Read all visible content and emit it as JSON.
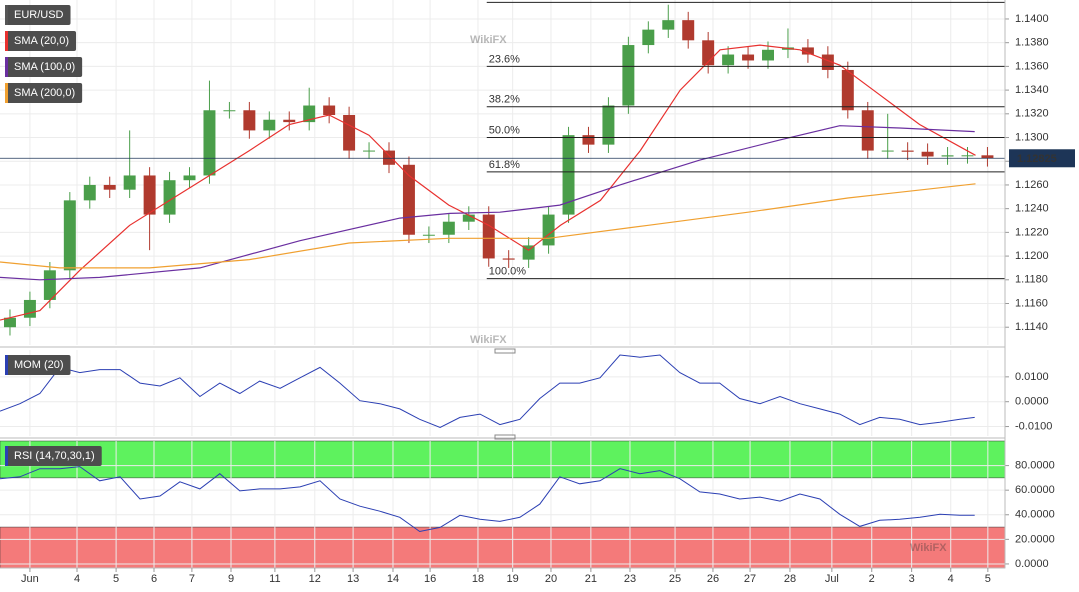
{
  "watermark": "WikiFX",
  "chart_data": [
    {
      "type": "candlestick",
      "name": "EUR/USD",
      "color": "#555555",
      "up_color": "#4a9e4a",
      "down_color": "#b03a2e",
      "xlim": [
        -0.75,
        24.44
      ],
      "ylim": [
        1.1125,
        1.1416
      ],
      "yticks": [
        {
          "value": 1.114,
          "label": "1.1140"
        },
        {
          "value": 1.116,
          "label": "1.1160"
        },
        {
          "value": 1.118,
          "label": "1.1180"
        },
        {
          "value": 1.12,
          "label": "1.1200"
        },
        {
          "value": 1.122,
          "label": "1.1220"
        },
        {
          "value": 1.124,
          "label": "1.1240"
        },
        {
          "value": 1.126,
          "label": "1.1260"
        },
        {
          "value": 1.128,
          "label": "1.1280"
        },
        {
          "value": 1.13,
          "label": "1.1300"
        },
        {
          "value": 1.132,
          "label": "1.1320"
        },
        {
          "value": 1.134,
          "label": "1.1340"
        },
        {
          "value": 1.136,
          "label": "1.1360"
        },
        {
          "value": 1.138,
          "label": "1.1380"
        },
        {
          "value": 1.14,
          "label": "1.1400"
        }
      ],
      "x": [
        -0.5,
        0,
        0.5,
        1,
        1.5,
        2,
        2.5,
        3,
        3.5,
        4,
        4.5,
        5,
        5.5,
        6,
        6.5,
        7,
        7.5,
        8,
        8.5,
        9,
        9.5,
        10,
        10.5,
        11,
        11.5,
        12,
        12.5,
        13,
        13.5,
        14,
        14.5,
        15,
        15.5,
        16,
        16.5,
        17,
        17.5,
        18,
        18.5,
        19,
        19.5,
        20,
        20.5,
        21,
        21.5,
        22,
        22.5,
        23,
        23.5,
        24
      ],
      "open": [
        1.114,
        1.1148,
        1.1163,
        1.1188,
        1.1247,
        1.126,
        1.1256,
        1.1268,
        1.1235,
        1.1264,
        1.1268,
        1.1323,
        1.1323,
        1.1306,
        1.1315,
        1.1313,
        1.1327,
        1.1319,
        1.1289,
        1.1289,
        1.1277,
        1.1218,
        1.1218,
        1.1229,
        1.1235,
        1.1198,
        1.1197,
        1.1209,
        1.1235,
        1.1302,
        1.1294,
        1.1327,
        1.1378,
        1.1391,
        1.1399,
        1.1382,
        1.1361,
        1.137,
        1.1365,
        1.1374,
        1.1376,
        1.137,
        1.1357,
        1.1323,
        1.1289,
        1.1289,
        1.1288,
        1.1284,
        1.1285,
        1.1285
      ],
      "high": [
        1.1155,
        1.117,
        1.1195,
        1.1254,
        1.1267,
        1.1267,
        1.1306,
        1.1275,
        1.1271,
        1.1275,
        1.1348,
        1.133,
        1.133,
        1.1322,
        1.1322,
        1.1342,
        1.1334,
        1.1326,
        1.1296,
        1.1296,
        1.1284,
        1.1225,
        1.1236,
        1.1242,
        1.1242,
        1.1205,
        1.1216,
        1.1242,
        1.1309,
        1.1309,
        1.1334,
        1.1385,
        1.1398,
        1.1412,
        1.1406,
        1.1389,
        1.1377,
        1.1377,
        1.1381,
        1.1392,
        1.1383,
        1.1377,
        1.1364,
        1.133,
        1.132,
        1.1296,
        1.1295,
        1.1292,
        1.1292,
        1.1292
      ],
      "low": [
        1.1133,
        1.1141,
        1.1156,
        1.1181,
        1.124,
        1.1249,
        1.1249,
        1.1205,
        1.1228,
        1.1257,
        1.1261,
        1.1316,
        1.1299,
        1.1299,
        1.1306,
        1.1306,
        1.1312,
        1.1282,
        1.1282,
        1.127,
        1.1211,
        1.1211,
        1.1211,
        1.1222,
        1.1191,
        1.119,
        1.119,
        1.1202,
        1.1228,
        1.1287,
        1.1287,
        1.132,
        1.1371,
        1.1384,
        1.1375,
        1.1354,
        1.1354,
        1.1358,
        1.1358,
        1.1367,
        1.1363,
        1.135,
        1.1316,
        1.1282,
        1.1282,
        1.1281,
        1.1277,
        1.1277,
        1.1278,
        1.12755
      ],
      "close": [
        1.1148,
        1.1163,
        1.1188,
        1.1247,
        1.126,
        1.1256,
        1.1268,
        1.1235,
        1.1264,
        1.1268,
        1.1323,
        1.1323,
        1.1306,
        1.1315,
        1.1313,
        1.1327,
        1.1319,
        1.1289,
        1.1289,
        1.1277,
        1.1218,
        1.1218,
        1.1229,
        1.1235,
        1.1198,
        1.1197,
        1.1209,
        1.1235,
        1.1302,
        1.1294,
        1.1327,
        1.1378,
        1.1391,
        1.1399,
        1.1382,
        1.1361,
        1.137,
        1.1365,
        1.1374,
        1.1376,
        1.137,
        1.1357,
        1.1323,
        1.1289,
        1.1289,
        1.1288,
        1.1284,
        1.1285,
        1.1285,
        1.12825
      ],
      "lines": [
        {
          "name": "SMA (20,0)",
          "color": "#e8312f",
          "x": [
            -0.75,
            0.25,
            1.25,
            2.5,
            3.5,
            4.5,
            5.5,
            6.5,
            7.5,
            8.5,
            9.5,
            10.5,
            11.5,
            12.5,
            13.3,
            14.3,
            15.3,
            16.3,
            17.3,
            18.3,
            19.3,
            20.3,
            21.3,
            22.3,
            23.7
          ],
          "values": [
            1.1146,
            1.1154,
            1.1188,
            1.1226,
            1.1247,
            1.1268,
            1.1289,
            1.1311,
            1.1319,
            1.1302,
            1.1268,
            1.1243,
            1.1226,
            1.1205,
            1.1226,
            1.1247,
            1.1289,
            1.134,
            1.1374,
            1.1378,
            1.1374,
            1.1361,
            1.1336,
            1.1311,
            1.1285
          ]
        },
        {
          "name": "SMA (100,0)",
          "color": "#6a2fa0",
          "x": [
            -0.75,
            0.25,
            1.75,
            4.26,
            6.77,
            9.27,
            10.53,
            11.78,
            13.28,
            14.79,
            16.79,
            18.8,
            20.3,
            21.8,
            23.68
          ],
          "values": [
            1.1182,
            1.118,
            1.1182,
            1.119,
            1.1213,
            1.1232,
            1.1236,
            1.1237,
            1.1243,
            1.126,
            1.1281,
            1.1298,
            1.131,
            1.1308,
            1.1305
          ]
        },
        {
          "name": "SMA (200,0)",
          "color": "#f0a030",
          "x": [
            -0.75,
            0.75,
            3.0,
            5.5,
            8.0,
            10.5,
            13.0,
            15.5,
            18.0,
            20.5,
            23.7
          ],
          "values": [
            1.1195,
            1.119,
            1.119,
            1.1197,
            1.1211,
            1.1215,
            1.1215,
            1.1226,
            1.1237,
            1.1249,
            1.1261
          ]
        }
      ],
      "fib_start": 11.45,
      "fib_levels": [
        {
          "value": 1.1414
        },
        {
          "label": "23.6%",
          "value": 1.136
        },
        {
          "label": "38.2%",
          "value": 1.1326
        },
        {
          "label": "50.0%",
          "value": 1.13
        },
        {
          "label": "61.8%",
          "value": 1.1271
        },
        {
          "label": "100.0%",
          "value": 1.1181
        }
      ],
      "last_price": 1.12825,
      "last_price_color": "#1d3557"
    },
    {
      "type": "line",
      "xlim": [
        -0.75,
        24.44
      ],
      "ylim": [
        -0.0138,
        0.0208
      ],
      "yticks": [
        {
          "value": 0.01,
          "label": "0.0100"
        },
        {
          "value": 0,
          "label": "0.0000"
        },
        {
          "value": -0.01,
          "label": "-0.0100"
        }
      ],
      "series": [
        {
          "name": "MOM (20)",
          "color": "#2b3fb3",
          "x": [
            -0.75,
            -0.25,
            0.25,
            0.75,
            1.25,
            1.75,
            2.26,
            2.76,
            3.26,
            3.76,
            4.26,
            4.76,
            5.26,
            5.76,
            6.27,
            6.77,
            7.27,
            7.77,
            8.27,
            8.77,
            9.27,
            9.77,
            10.28,
            10.78,
            11.28,
            11.78,
            12.28,
            12.78,
            13.28,
            13.78,
            14.29,
            14.79,
            15.29,
            15.79,
            16.29,
            16.79,
            17.29,
            17.79,
            18.3,
            18.8,
            19.3,
            19.8,
            20.3,
            20.8,
            21.3,
            21.8,
            22.31,
            22.81,
            23.31,
            23.68
          ],
          "values": [
            -0.0038,
            -0.0008,
            0.0033,
            0.0138,
            0.0117,
            0.0129,
            0.0129,
            0.0075,
            0.0063,
            0.0096,
            0.0021,
            0.0075,
            0.0033,
            0.0083,
            0.0054,
            0.0096,
            0.0138,
            0.0075,
            0.0004,
            -0.0008,
            -0.0029,
            -0.0071,
            -0.0104,
            -0.0063,
            -0.005,
            -0.0092,
            -0.0071,
            0.0013,
            0.0075,
            0.0075,
            0.0096,
            0.0188,
            0.0179,
            0.0188,
            0.0117,
            0.0075,
            0.0075,
            0.0013,
            -0.0008,
            0.0021,
            -0.0008,
            -0.0029,
            -0.005,
            -0.0092,
            -0.0063,
            -0.0071,
            -0.0092,
            -0.0083,
            -0.0071,
            -0.0063
          ]
        }
      ]
    },
    {
      "type": "line",
      "xlim": [
        -0.75,
        24.44
      ],
      "ylim": [
        -3.3,
        100
      ],
      "yticks": [
        {
          "value": 80,
          "label": "80.0000"
        },
        {
          "value": 60,
          "label": "60.0000"
        },
        {
          "value": 40,
          "label": "40.0000"
        },
        {
          "value": 20,
          "label": "20.0000"
        },
        {
          "value": 0,
          "label": "0.0000"
        }
      ],
      "overbought": 70,
      "overbought_color": "#5ef25e",
      "oversold": 30,
      "oversold_color": "#f47a7a",
      "series": [
        {
          "name": "RSI (14,70,30,1)",
          "color": "#2b3fb3",
          "x": [
            -0.75,
            -0.25,
            0.25,
            0.75,
            1.25,
            1.75,
            2.26,
            2.76,
            3.26,
            3.76,
            4.26,
            4.76,
            5.26,
            5.76,
            6.27,
            6.77,
            7.27,
            7.77,
            8.27,
            8.77,
            9.27,
            9.77,
            10.28,
            10.78,
            11.28,
            11.78,
            12.28,
            12.78,
            13.28,
            13.78,
            14.29,
            14.79,
            15.29,
            15.79,
            16.29,
            16.79,
            17.29,
            17.79,
            18.3,
            18.8,
            19.3,
            19.8,
            20.3,
            20.8,
            21.3,
            21.8,
            22.31,
            22.81,
            23.31,
            23.68
          ],
          "values": [
            69.3,
            70.9,
            77.5,
            77.5,
            79.2,
            67.6,
            70.9,
            52.8,
            55.3,
            66.8,
            61.0,
            73.4,
            59.4,
            61.0,
            61.0,
            62.7,
            67.6,
            52.8,
            47.0,
            42.9,
            37.9,
            26.4,
            29.7,
            39.6,
            36.3,
            34.6,
            37.9,
            48.7,
            70.9,
            65.2,
            67.6,
            77.5,
            73.4,
            75.9,
            69.3,
            58.6,
            56.9,
            52.8,
            54.4,
            51.1,
            56.9,
            52.8,
            40.4,
            30.5,
            35.5,
            36.3,
            37.9,
            40.4,
            39.6,
            39.6
          ]
        }
      ],
      "xticks": [
        {
          "value": 0,
          "label": "Jun"
        },
        {
          "value": 1.18,
          "label": "4"
        },
        {
          "value": 2.16,
          "label": "5"
        },
        {
          "value": 3.11,
          "label": "6"
        },
        {
          "value": 4.06,
          "label": "7"
        },
        {
          "value": 5.04,
          "label": "9"
        },
        {
          "value": 6.14,
          "label": "11"
        },
        {
          "value": 7.14,
          "label": "12"
        },
        {
          "value": 8.1,
          "label": "13"
        },
        {
          "value": 9.1,
          "label": "14"
        },
        {
          "value": 10.03,
          "label": "16"
        },
        {
          "value": 11.23,
          "label": "18"
        },
        {
          "value": 12.1,
          "label": "19"
        },
        {
          "value": 13.06,
          "label": "20"
        },
        {
          "value": 14.06,
          "label": "21"
        },
        {
          "value": 15.04,
          "label": "23"
        },
        {
          "value": 16.17,
          "label": "25"
        },
        {
          "value": 17.12,
          "label": "26"
        },
        {
          "value": 18.05,
          "label": "27"
        },
        {
          "value": 19.05,
          "label": "28"
        },
        {
          "value": 20.1,
          "label": "Jul"
        },
        {
          "value": 21.1,
          "label": "2"
        },
        {
          "value": 22.1,
          "label": "3"
        },
        {
          "value": 23.08,
          "label": "4"
        },
        {
          "value": 24.01,
          "label": "5"
        }
      ]
    }
  ]
}
